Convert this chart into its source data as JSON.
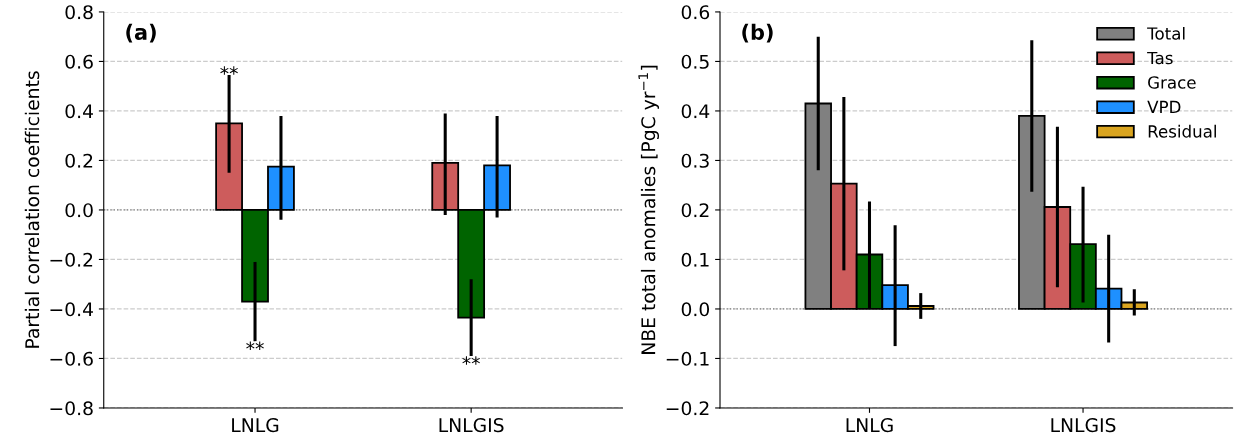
{
  "chart_data": [
    {
      "type": "bar",
      "title": "(a)",
      "ylabel": "Partial correlation coefficients",
      "categories": [
        "LNLG",
        "LNLGIS"
      ],
      "series": [
        {
          "color": "#cd5c5c",
          "values": [
            0.35,
            0.19
          ],
          "errors": [
            [
              0.15,
              0.545
            ],
            [
              -0.02,
              0.39
            ]
          ]
        },
        {
          "color": "#006400",
          "values": [
            -0.37,
            -0.435
          ],
          "errors": [
            [
              -0.53,
              -0.21
            ],
            [
              -0.59,
              -0.28
            ]
          ]
        },
        {
          "color": "#1e90ff",
          "values": [
            0.175,
            0.18
          ],
          "errors": [
            [
              -0.04,
              0.38
            ],
            [
              -0.03,
              0.38
            ]
          ]
        }
      ],
      "ylim": [
        -0.8,
        0.8
      ],
      "yticks": [
        -0.8,
        -0.6,
        -0.4,
        -0.2,
        {
          "value": 0,
          "label": "0.0"
        },
        0.2,
        0.4,
        0.6,
        0.8
      ],
      "grid": "y",
      "legend": false,
      "ref_lines": [
        {
          "axis": "y",
          "value": 0,
          "color": "#808080",
          "line_style": "dotted"
        }
      ],
      "annotations": [
        "**",
        {
          "text": "**",
          "x": "LNLG",
          "y": -0.53
        },
        {
          "text": "**",
          "x": "LNLGIS",
          "y": -0.59
        }
      ]
    },
    {
      "type": "bar",
      "title": "(b)",
      "ylabel": "NBE total anomalies [PgC yr$^{−1}$]",
      "categories": [
        "LNLG",
        "LNLGIS"
      ],
      "series": [
        {
          "name": "Total",
          "color": "#808080",
          "values": [
            0.415,
            0.39
          ],
          "errors": [
            [
              0.28,
              0.55
            ],
            [
              0.237,
              0.543
            ]
          ]
        },
        {
          "name": "Tas",
          "color": "#cd5c5c",
          "values": [
            0.253,
            0.206
          ],
          "errors": [
            [
              0.078,
              0.428
            ],
            [
              0.044,
              0.368
            ]
          ]
        },
        {
          "name": "Grace",
          "color": "#006400",
          "values": [
            0.11,
            0.131
          ],
          "errors": [
            [
              0.002,
              0.217
            ],
            [
              0.013,
              0.247
            ]
          ]
        },
        {
          "name": "VPD",
          "color": "#1e90ff",
          "values": [
            0.048,
            0.041
          ],
          "errors": [
            [
              -0.075,
              0.169
            ],
            [
              -0.068,
              0.15
            ]
          ]
        },
        {
          "name": "Residual",
          "color": "#daa520",
          "values": [
            0.006,
            0.013
          ],
          "errors": [
            [
              -0.02,
              0.032
            ],
            [
              -0.013,
              0.04
            ]
          ]
        }
      ],
      "ylim": [
        -0.2,
        0.6
      ],
      "yticks": [
        -0.2,
        -0.1,
        {
          "value": 0,
          "label": "0.0"
        },
        0.1,
        0.2,
        0.3,
        0.4,
        0.5,
        0.6
      ],
      "grid": "y",
      "legend": "top right",
      "ref_lines": [
        {
          "axis": "y",
          "value": 0,
          "color": "#808080",
          "line_style": "dotted"
        }
      ]
    }
  ]
}
